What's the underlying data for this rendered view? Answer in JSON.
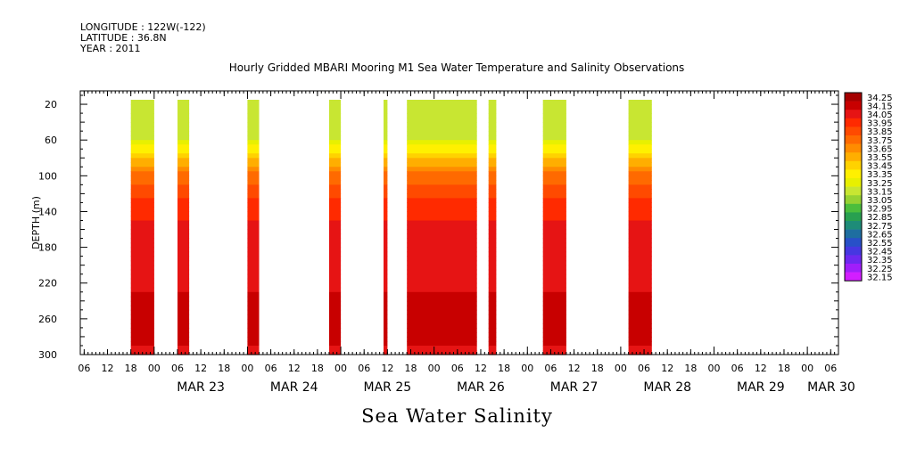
{
  "header": {
    "longitude": "LONGITUDE : 122W(-122)",
    "latitude": "LATITUDE : 36.8N",
    "year": "YEAR : 2011"
  },
  "chart_data": {
    "type": "heatmap",
    "title": "Hourly Gridded MBARI Mooring M1 Sea Water Temperature and Salinity Observations",
    "xlabel": "",
    "ylabel": "DEPTH (m)",
    "variable": "Sea Water Salinity",
    "x_hour_ticks": [
      "06",
      "12",
      "18",
      "00",
      "06",
      "12",
      "18",
      "00",
      "06",
      "12",
      "18",
      "00",
      "06",
      "12",
      "18",
      "00",
      "06",
      "12",
      "18",
      "00",
      "06",
      "12",
      "18",
      "00",
      "06",
      "12",
      "18",
      "00",
      "06",
      "12",
      "18",
      "00",
      "06"
    ],
    "x_day_labels": [
      "MAR 23",
      "MAR 24",
      "MAR 25",
      "MAR 26",
      "MAR 27",
      "MAR 28",
      "MAR 29",
      "MAR 30"
    ],
    "xlim_hours_from_mar22_midnight": [
      5,
      200
    ],
    "ylim": [
      300,
      5
    ],
    "y_ticks": [
      20,
      60,
      100,
      140,
      180,
      220,
      260,
      300
    ],
    "legend_levels": [
      34.25,
      34.15,
      34.05,
      33.95,
      33.85,
      33.75,
      33.65,
      33.55,
      33.45,
      33.35,
      33.25,
      33.15,
      33.05,
      32.95,
      32.85,
      32.75,
      32.65,
      32.55,
      32.45,
      32.35,
      32.25,
      32.15
    ],
    "legend_colors": [
      "#a50000",
      "#c80000",
      "#e61414",
      "#ff2a00",
      "#ff4a00",
      "#ff6a00",
      "#ff8c00",
      "#ffae00",
      "#ffd200",
      "#fff000",
      "#e8f000",
      "#c8e632",
      "#96d232",
      "#4bbe3c",
      "#28a050",
      "#1e8c78",
      "#1e6ea0",
      "#2850c8",
      "#4637e1",
      "#6e28f0",
      "#a01efa",
      "#d21eff"
    ],
    "data_segments_hours": [
      [
        18,
        24
      ],
      [
        30,
        33
      ],
      [
        48,
        51
      ],
      [
        69,
        72
      ],
      [
        83,
        84
      ],
      [
        89,
        107
      ],
      [
        110,
        112
      ],
      [
        124,
        130
      ],
      [
        146,
        152
      ]
    ],
    "profile_depths": [
      20,
      40,
      60,
      70,
      80,
      90,
      100,
      110,
      120,
      130,
      140,
      160,
      180,
      200,
      220,
      240,
      260,
      280,
      300
    ],
    "profile_salinity": [
      33.1,
      33.1,
      33.2,
      33.35,
      33.5,
      33.62,
      33.73,
      33.82,
      33.88,
      33.93,
      33.98,
      34.02,
      34.04,
      34.06,
      34.08,
      34.13,
      34.18,
      34.12,
      34.08
    ],
    "grid": false,
    "legend_position": "right"
  }
}
